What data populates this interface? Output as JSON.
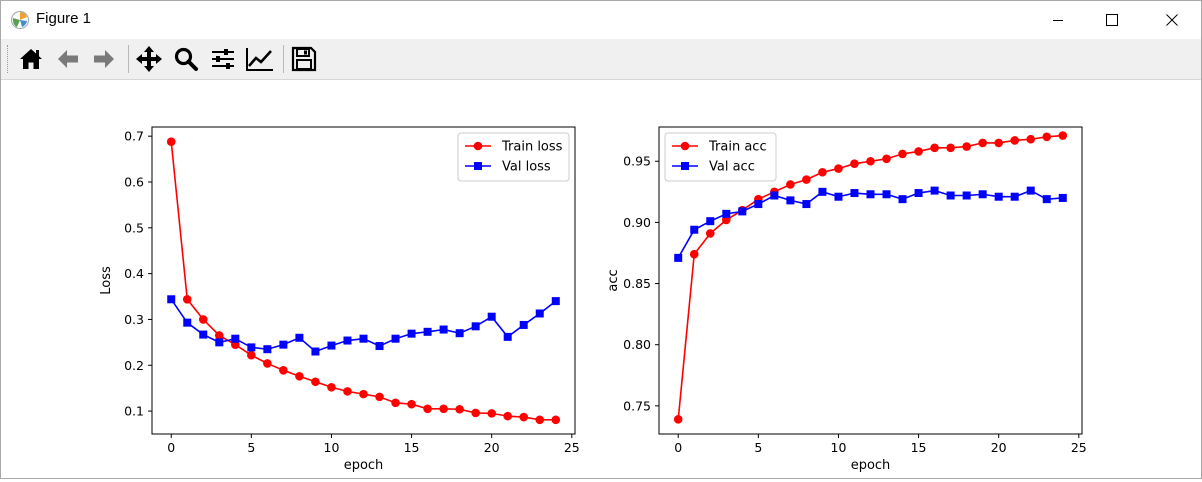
{
  "window": {
    "title": "Figure 1"
  },
  "toolbar": {
    "buttons": [
      {
        "name": "home-icon"
      },
      {
        "name": "back-arrow-icon"
      },
      {
        "name": "forward-arrow-icon"
      },
      {
        "name": "pan-icon"
      },
      {
        "name": "zoom-icon"
      },
      {
        "name": "subplots-config-icon"
      },
      {
        "name": "edit-axes-icon"
      },
      {
        "name": "save-icon"
      }
    ]
  },
  "colors": {
    "train": "#ff0000",
    "val": "#0000ff"
  },
  "chart_data": [
    {
      "type": "line",
      "xlabel": "epoch",
      "ylabel": "Loss",
      "xlim": [
        -1.2,
        25.2
      ],
      "ylim": [
        0.05,
        0.72
      ],
      "xticks": [
        0,
        5,
        10,
        15,
        20,
        25
      ],
      "yticks": [
        0.1,
        0.2,
        0.3,
        0.4,
        0.5,
        0.6,
        0.7
      ],
      "legend_position": "top-right",
      "x": [
        0,
        1,
        2,
        3,
        4,
        5,
        6,
        7,
        8,
        9,
        10,
        11,
        12,
        13,
        14,
        15,
        16,
        17,
        18,
        19,
        20,
        21,
        22,
        23,
        24
      ],
      "series": [
        {
          "name": "Train loss",
          "color": "#ff0000",
          "marker": "circle",
          "values": [
            0.688,
            0.344,
            0.3,
            0.265,
            0.245,
            0.222,
            0.204,
            0.189,
            0.176,
            0.164,
            0.152,
            0.143,
            0.137,
            0.131,
            0.118,
            0.115,
            0.105,
            0.105,
            0.104,
            0.096,
            0.095,
            0.089,
            0.087,
            0.081,
            0.081
          ]
        },
        {
          "name": "Val loss",
          "color": "#0000ff",
          "marker": "square",
          "values": [
            0.344,
            0.293,
            0.267,
            0.25,
            0.258,
            0.239,
            0.235,
            0.245,
            0.26,
            0.23,
            0.243,
            0.254,
            0.258,
            0.242,
            0.258,
            0.269,
            0.273,
            0.278,
            0.27,
            0.285,
            0.306,
            0.262,
            0.288,
            0.313,
            0.34
          ]
        }
      ]
    },
    {
      "type": "line",
      "xlabel": "epoch",
      "ylabel": "acc",
      "xlim": [
        -1.2,
        25.2
      ],
      "ylim": [
        0.727,
        0.978
      ],
      "xticks": [
        0,
        5,
        10,
        15,
        20,
        25
      ],
      "yticks": [
        0.75,
        0.8,
        0.85,
        0.9,
        0.95
      ],
      "legend_position": "top-left",
      "x": [
        0,
        1,
        2,
        3,
        4,
        5,
        6,
        7,
        8,
        9,
        10,
        11,
        12,
        13,
        14,
        15,
        16,
        17,
        18,
        19,
        20,
        21,
        22,
        23,
        24
      ],
      "series": [
        {
          "name": "Train acc",
          "color": "#ff0000",
          "marker": "circle",
          "values": [
            0.739,
            0.874,
            0.891,
            0.902,
            0.91,
            0.919,
            0.925,
            0.931,
            0.935,
            0.941,
            0.944,
            0.948,
            0.95,
            0.952,
            0.956,
            0.958,
            0.961,
            0.961,
            0.962,
            0.965,
            0.965,
            0.967,
            0.968,
            0.97,
            0.971
          ]
        },
        {
          "name": "Val acc",
          "color": "#0000ff",
          "marker": "square",
          "values": [
            0.871,
            0.894,
            0.901,
            0.907,
            0.909,
            0.915,
            0.922,
            0.918,
            0.915,
            0.925,
            0.921,
            0.924,
            0.923,
            0.923,
            0.919,
            0.924,
            0.926,
            0.922,
            0.922,
            0.923,
            0.921,
            0.921,
            0.926,
            0.919,
            0.92
          ]
        }
      ]
    }
  ]
}
